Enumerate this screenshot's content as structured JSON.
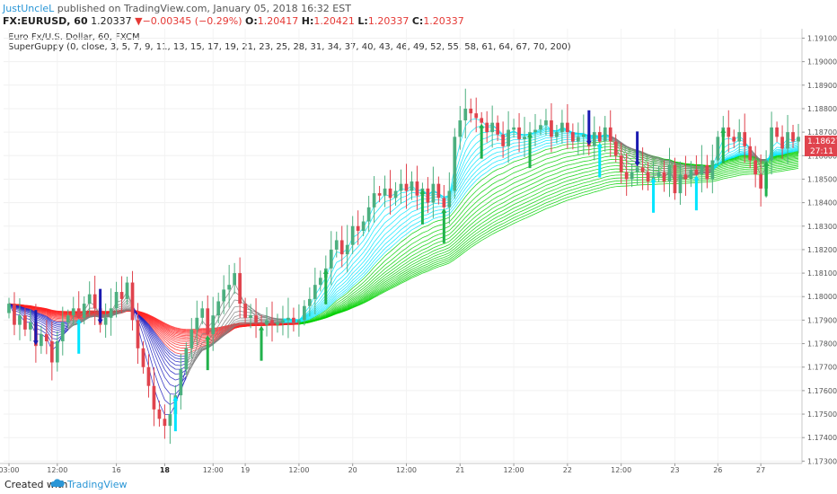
{
  "header": {
    "user": "JustUncleL",
    "published": "published on TradingView.com, January 05, 2018 16:32 EST",
    "symbol": "FX:EURUSD, 60",
    "last": "1.20337",
    "change_arrow": "▼",
    "change": "−0.00345 (−0.29%)",
    "o_label": "O:",
    "o_value": "1.20417",
    "h_label": "H:",
    "h_value": "1.20421",
    "l_label": "L:",
    "l_value": "1.20337",
    "c_label": "C:",
    "c_value": "1.20337"
  },
  "legend": {
    "series": "Euro Fx/U.S. Dollar, 60, FXCM",
    "indicator": "SuperGuppy (0, close, 3, 5, 7, 9, 11, 13, 15, 17, 19, 21, 23, 25, 28, 31, 34, 37, 40, 43, 46, 49, 52, 55, 58, 61, 64, 67, 70, 200)"
  },
  "price_labels": {
    "current": "1.18627",
    "timer": "27:11"
  },
  "footer": {
    "created": "Created with",
    "brand": "TradingView"
  },
  "colors": {
    "up": "#4caf7f",
    "down": "#e0434d",
    "up_arrow": "#22b14c",
    "down_arrow": "#1a1ab0",
    "cyan": "#00e5ff",
    "green": "#00d000",
    "red": "#ff2020",
    "blue": "#2020c0",
    "gray": "#808080"
  },
  "chart_data": {
    "type": "candlestick",
    "symbol": "EURUSD",
    "timeframe": "60",
    "ylim": [
      1.1729,
      1.1914
    ],
    "y_ticks": [
      "1.19100",
      "1.19000",
      "1.18900",
      "1.18800",
      "1.18700",
      "1.18600",
      "1.18500",
      "1.18400",
      "1.18300",
      "1.18200",
      "1.18100",
      "1.18000",
      "1.17900",
      "1.17800",
      "1.17700",
      "1.17600",
      "1.17500",
      "1.17400",
      "1.17300"
    ],
    "x_ticks": [
      {
        "label": "03:00",
        "bold": false,
        "i": 0
      },
      {
        "label": "12:00",
        "bold": false,
        "i": 9
      },
      {
        "label": "16",
        "bold": false,
        "i": 20
      },
      {
        "label": "18",
        "bold": true,
        "i": 29
      },
      {
        "label": "12:00",
        "bold": false,
        "i": 38
      },
      {
        "label": "19",
        "bold": false,
        "i": 44
      },
      {
        "label": "12:00",
        "bold": false,
        "i": 54
      },
      {
        "label": "20",
        "bold": false,
        "i": 64
      },
      {
        "label": "12:00",
        "bold": false,
        "i": 74
      },
      {
        "label": "21",
        "bold": false,
        "i": 84
      },
      {
        "label": "12:00",
        "bold": false,
        "i": 94
      },
      {
        "label": "22",
        "bold": false,
        "i": 104
      },
      {
        "label": "12:00",
        "bold": false,
        "i": 114
      },
      {
        "label": "23",
        "bold": false,
        "i": 124
      },
      {
        "label": "26",
        "bold": false,
        "i": 132
      },
      {
        "label": "27",
        "bold": false,
        "i": 140
      }
    ],
    "close": [
      1.1797,
      1.1788,
      1.1792,
      1.1786,
      1.1789,
      1.1779,
      1.1784,
      1.1781,
      1.1772,
      1.1781,
      1.1789,
      1.1792,
      1.1795,
      1.1791,
      1.1797,
      1.1801,
      1.1795,
      1.1788,
      1.1791,
      1.1795,
      1.1802,
      1.1799,
      1.1806,
      1.179,
      1.1778,
      1.177,
      1.1762,
      1.1752,
      1.1748,
      1.1745,
      1.175,
      1.1758,
      1.1769,
      1.1778,
      1.1786,
      1.1791,
      1.1795,
      1.1784,
      1.1792,
      1.1798,
      1.1803,
      1.1805,
      1.181,
      1.1797,
      1.1791,
      1.1792,
      1.1789,
      1.1788,
      1.179,
      1.1788,
      1.1789,
      1.179,
      1.1791,
      1.1789,
      1.179,
      1.1796,
      1.1799,
      1.1805,
      1.1808,
      1.1812,
      1.182,
      1.1824,
      1.1818,
      1.1822,
      1.183,
      1.1828,
      1.1832,
      1.1838,
      1.1844,
      1.1843,
      1.1846,
      1.1842,
      1.1845,
      1.1848,
      1.1845,
      1.1849,
      1.1843,
      1.1846,
      1.184,
      1.1848,
      1.1842,
      1.1838,
      1.1845,
      1.1868,
      1.1875,
      1.188,
      1.1878,
      1.1876,
      1.1874,
      1.187,
      1.1874,
      1.1869,
      1.1864,
      1.1871,
      1.1872,
      1.1867,
      1.1868,
      1.187,
      1.1871,
      1.1873,
      1.1875,
      1.1868,
      1.187,
      1.1874,
      1.187,
      1.1866,
      1.1868,
      1.1869,
      1.1864,
      1.187,
      1.1866,
      1.1872,
      1.1866,
      1.186,
      1.1853,
      1.185,
      1.1853,
      1.1855,
      1.1853,
      1.1849,
      1.1851,
      1.1853,
      1.1849,
      1.1856,
      1.1844,
      1.1852,
      1.185,
      1.1854,
      1.1852,
      1.1856,
      1.185,
      1.1858,
      1.1868,
      1.1872,
      1.1868,
      1.1866,
      1.187,
      1.1864,
      1.1858,
      1.1852,
      1.1846,
      1.1858,
      1.1872,
      1.1868,
      1.1863,
      1.187,
      1.1866,
      1.1868
    ],
    "guppy_bands": {
      "fast": 3,
      "slow": 70,
      "trend": 200
    },
    "signals": [
      {
        "i": 5,
        "dir": "down",
        "color": "down_arrow"
      },
      {
        "i": 13,
        "dir": "up",
        "color": "cyan"
      },
      {
        "i": 17,
        "dir": "down",
        "color": "down_arrow"
      },
      {
        "i": 31,
        "dir": "up",
        "color": "cyan"
      },
      {
        "i": 37,
        "dir": "up",
        "color": "up_arrow"
      },
      {
        "i": 47,
        "dir": "up",
        "color": "up_arrow"
      },
      {
        "i": 59,
        "dir": "up",
        "color": "up_arrow"
      },
      {
        "i": 77,
        "dir": "up",
        "color": "up_arrow"
      },
      {
        "i": 81,
        "dir": "up",
        "color": "up_arrow"
      },
      {
        "i": 88,
        "dir": "up",
        "color": "up_arrow"
      },
      {
        "i": 97,
        "dir": "up",
        "color": "up_arrow"
      },
      {
        "i": 108,
        "dir": "down",
        "color": "down_arrow"
      },
      {
        "i": 110,
        "dir": "up",
        "color": "cyan"
      },
      {
        "i": 117,
        "dir": "down",
        "color": "down_arrow"
      },
      {
        "i": 120,
        "dir": "up",
        "color": "cyan"
      },
      {
        "i": 128,
        "dir": "up",
        "color": "cyan"
      },
      {
        "i": 133,
        "dir": "up",
        "color": "up_arrow"
      },
      {
        "i": 141,
        "dir": "up",
        "color": "up_arrow"
      }
    ]
  }
}
